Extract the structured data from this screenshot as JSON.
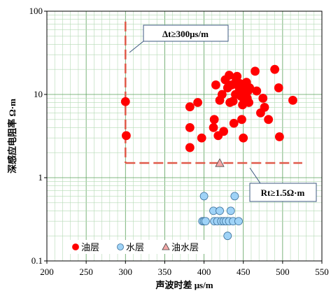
{
  "chart_data": {
    "type": "scatter",
    "xlabel": "声波时差  μs/m",
    "ylabel": "深感应电阻率   Ω·m",
    "xlim": [
      200,
      550
    ],
    "ylim": [
      0.1,
      100
    ],
    "yscale": "log",
    "grid": true,
    "legend_position": "bottom-left",
    "x_ticks": [
      "200",
      "250",
      "300",
      "350",
      "400",
      "450",
      "500",
      "550"
    ],
    "y_ticks": [
      "0.1",
      "1",
      "10",
      "100"
    ],
    "series": [
      {
        "name": "油层",
        "color": "#ff0000",
        "marker": "circle",
        "points": [
          [
            300,
            8.2
          ],
          [
            301,
            3.2
          ],
          [
            382,
            7.1
          ],
          [
            382,
            4.0
          ],
          [
            382,
            2.3
          ],
          [
            392,
            8.0
          ],
          [
            397,
            3.0
          ],
          [
            412,
            4.0
          ],
          [
            413,
            5.0
          ],
          [
            415,
            13.0
          ],
          [
            418,
            3.2
          ],
          [
            420,
            8.5
          ],
          [
            423,
            10.0
          ],
          [
            425,
            3.6
          ],
          [
            427,
            15.0
          ],
          [
            430,
            12.0
          ],
          [
            432,
            17.0
          ],
          [
            433,
            8.0
          ],
          [
            435,
            13.0
          ],
          [
            437,
            8.3
          ],
          [
            438,
            4.5
          ],
          [
            440,
            10.0
          ],
          [
            441,
            15.0
          ],
          [
            442,
            16.5
          ],
          [
            444,
            12.5
          ],
          [
            445,
            11.0
          ],
          [
            446,
            13.5
          ],
          [
            447,
            9.5
          ],
          [
            448,
            5.0
          ],
          [
            449,
            7.5
          ],
          [
            450,
            11.5
          ],
          [
            450,
            3.0
          ],
          [
            451,
            8.5
          ],
          [
            452,
            13.0
          ],
          [
            453,
            10.0
          ],
          [
            454,
            14.0
          ],
          [
            455,
            9.0
          ],
          [
            456,
            11.0
          ],
          [
            457,
            8.0
          ],
          [
            458,
            12.0
          ],
          [
            465,
            19.0
          ],
          [
            467,
            11.0
          ],
          [
            472,
            6.0
          ],
          [
            475,
            9.0
          ],
          [
            477,
            7.0
          ],
          [
            482,
            5.0
          ],
          [
            490,
            20.0
          ],
          [
            495,
            12.0
          ],
          [
            496,
            3.1
          ],
          [
            513,
            8.5
          ]
        ]
      },
      {
        "name": "水层",
        "color": "#9fd3f7",
        "marker": "circle",
        "points": [
          [
            398,
            0.3
          ],
          [
            400,
            0.3
          ],
          [
            400,
            0.6
          ],
          [
            402,
            0.3
          ],
          [
            412,
            0.4
          ],
          [
            413,
            0.3
          ],
          [
            417,
            0.3
          ],
          [
            420,
            0.4
          ],
          [
            422,
            0.3
          ],
          [
            425,
            0.3
          ],
          [
            428,
            0.3
          ],
          [
            430,
            0.2
          ],
          [
            432,
            0.3
          ],
          [
            434,
            0.4
          ],
          [
            437,
            0.3
          ],
          [
            439,
            0.6
          ],
          [
            444,
            0.3
          ]
        ]
      },
      {
        "name": "油水层",
        "color": "#f4a7a7",
        "marker": "triangle",
        "points": [
          [
            420,
            1.5
          ]
        ]
      }
    ],
    "cutoff_lines": {
      "x_value": 300,
      "y_value": 1.5,
      "x_label": "Δt≥300μs/m",
      "y_label": "Rt≥1.5Ω·m"
    }
  }
}
